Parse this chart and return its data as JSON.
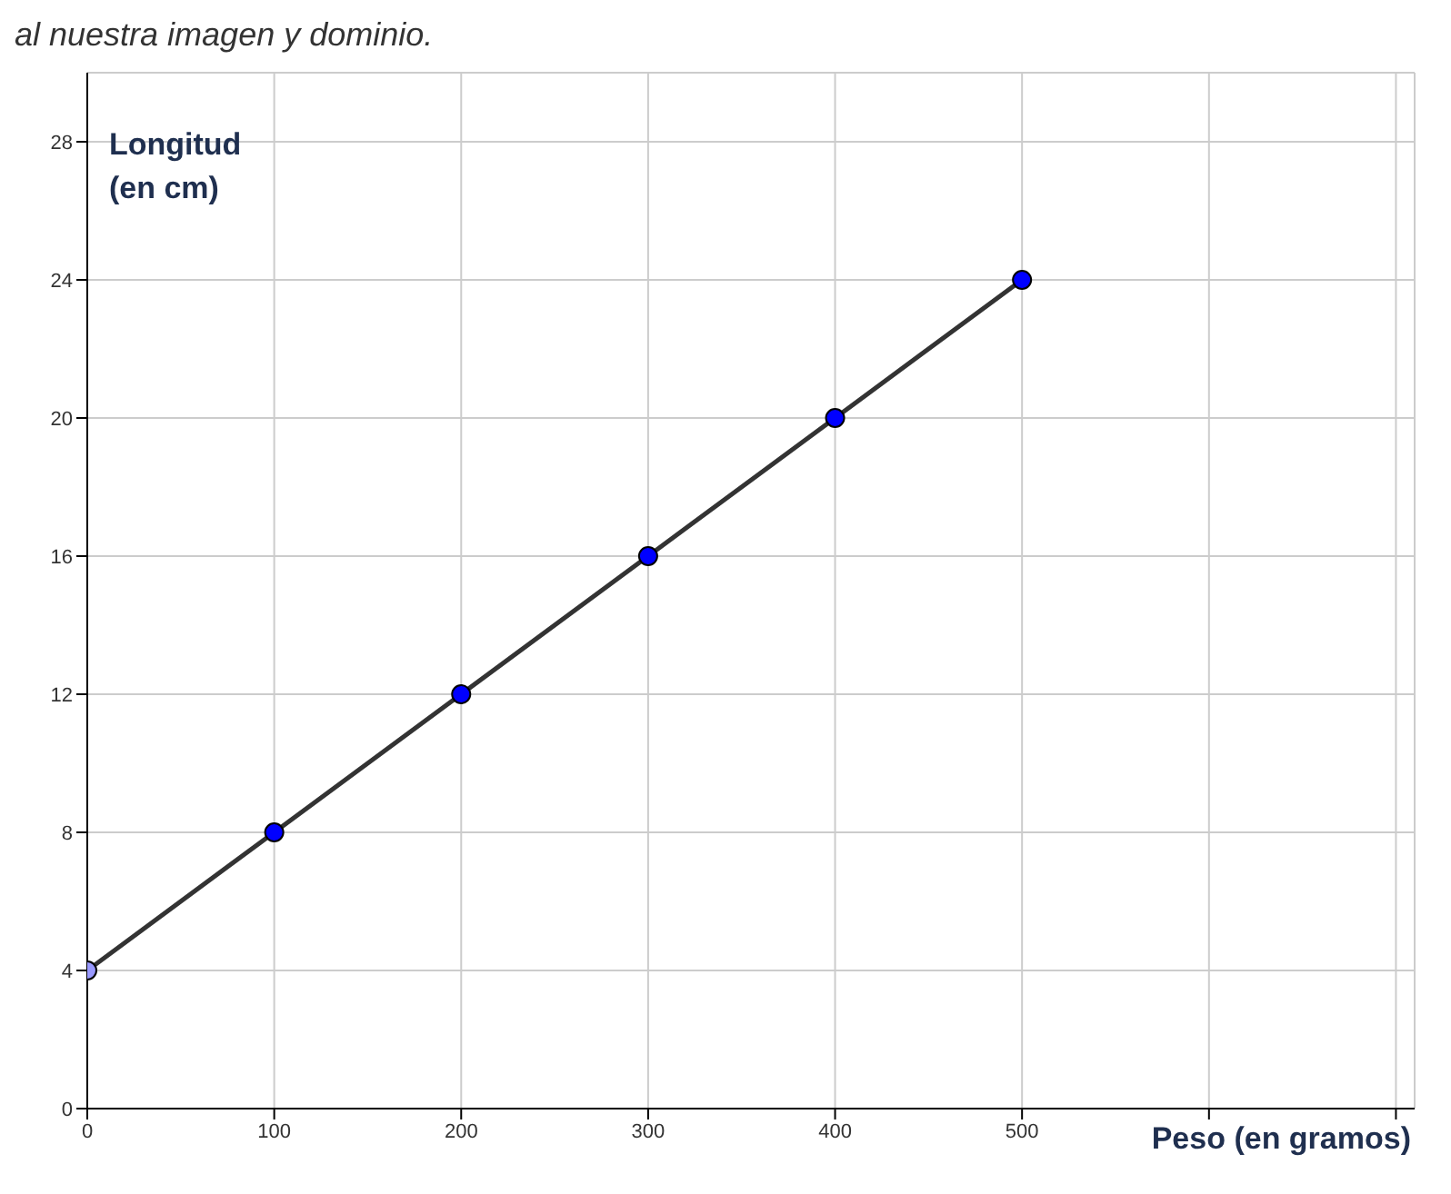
{
  "chart_data": {
    "type": "line",
    "xlabel": "Peso (en gramos)",
    "ylabel": "Longitud (en cm)",
    "annotations": [
      "al nuestra imagen y dominio."
    ],
    "x": [
      0,
      100,
      200,
      300,
      400,
      500
    ],
    "series": [
      {
        "color": "#333333",
        "colors": [
          "#9999ff",
          "#0000ff",
          "#0000ff",
          "#0000ff",
          "#0000ff",
          "#0000ff"
        ],
        "values": [
          4,
          8,
          12,
          16,
          20,
          24
        ]
      }
    ],
    "xlim": [
      0,
      710
    ],
    "xticks": [
      0,
      100,
      200,
      300,
      400,
      500,
      {
        "value": 600,
        "label": null
      },
      {
        "value": 700,
        "label": null
      }
    ],
    "ylim": [
      0,
      30
    ],
    "yticks": [
      0,
      4,
      8,
      12,
      16,
      20,
      24,
      28
    ],
    "grid": true,
    "marker": "circle",
    "line_style": "solid",
    "legend": false
  }
}
